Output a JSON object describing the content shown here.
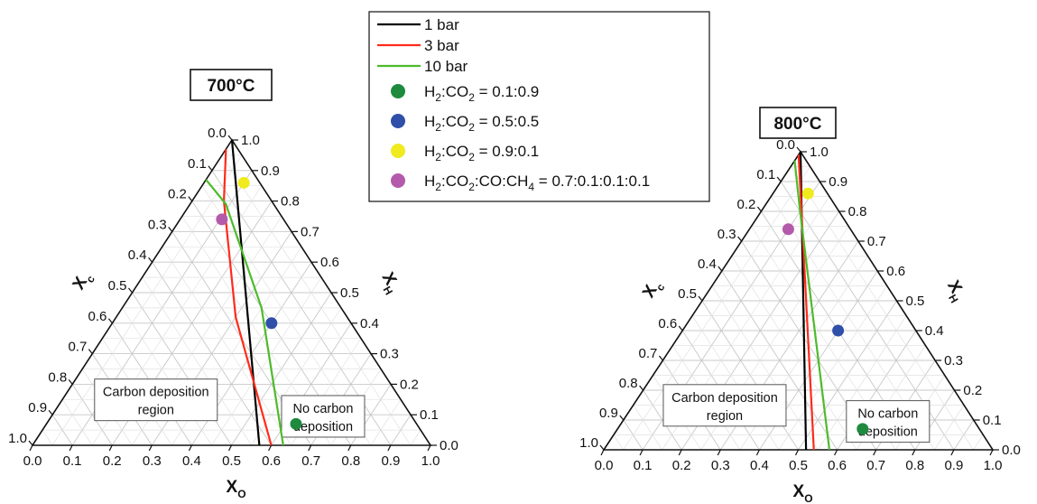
{
  "legend": {
    "lines": [
      {
        "label": "1 bar",
        "color": "#000000"
      },
      {
        "label": "3 bar",
        "color": "#ff2a1a"
      },
      {
        "label": "10 bar",
        "color": "#4dbb2a"
      }
    ],
    "points": [
      {
        "parts": [
          "H",
          "2",
          ":CO",
          "2",
          " = 0.1:0.9"
        ],
        "color": "#1e8a3e"
      },
      {
        "parts": [
          "H",
          "2",
          ":CO",
          "2",
          " = 0.5:0.5"
        ],
        "color": "#2f4fa8"
      },
      {
        "parts": [
          "H",
          "2",
          ":CO",
          "2",
          " = 0.9:0.1"
        ],
        "color": "#f0ea1e"
      },
      {
        "parts": [
          "H",
          "2",
          ":CO",
          "2",
          ":CO:CH",
          "4",
          " = 0.7:0.1:0.1:0.1"
        ],
        "color": "#b45aaa"
      }
    ]
  },
  "axis_labels": {
    "c": "X",
    "c_sub": "c",
    "h": "X",
    "h_sub": "H",
    "o": "X",
    "o_sub": "O"
  },
  "ticks": [
    "0.0",
    "0.1",
    "0.2",
    "0.3",
    "0.4",
    "0.5",
    "0.6",
    "0.7",
    "0.8",
    "0.9",
    "1.0"
  ],
  "chart_data": [
    {
      "type": "scatter",
      "subtype": "ternary",
      "title": "700°C",
      "axes": [
        "X_O (bottom)",
        "X_H (right)",
        "X_C (left)"
      ],
      "axis_range": [
        0,
        1
      ],
      "grid": true,
      "region_labels": {
        "left": [
          "Carbon deposition",
          "region"
        ],
        "right": [
          "No carbon",
          "deposition"
        ]
      },
      "series": [
        {
          "name": "1 bar",
          "kind": "line",
          "color": "#000000",
          "points": [
            {
              "xO": 0.0,
              "xH": 1.0
            },
            {
              "xO": 0.57,
              "xH": 0.0
            }
          ]
        },
        {
          "name": "3 bar",
          "kind": "line",
          "color": "#ff2a1a",
          "points": [
            {
              "xO": 0.0,
              "xH": 0.97
            },
            {
              "xO": 0.08,
              "xH": 0.8
            },
            {
              "xO": 0.3,
              "xH": 0.42
            },
            {
              "xO": 0.6,
              "xH": 0.0
            }
          ]
        },
        {
          "name": "10 bar",
          "kind": "line",
          "color": "#4dbb2a",
          "points": [
            {
              "xO": 0.0,
              "xH": 0.87
            },
            {
              "xO": 0.09,
              "xH": 0.79
            },
            {
              "xO": 0.35,
              "xH": 0.45
            },
            {
              "xO": 0.63,
              "xH": 0.0
            }
          ]
        },
        {
          "name": "H2:CO2 = 0.1:0.9",
          "kind": "point",
          "color": "#1e8a3e",
          "points": [
            {
              "xO": 0.627,
              "xH": 0.07
            }
          ]
        },
        {
          "name": "H2:CO2 = 0.5:0.5",
          "kind": "point",
          "color": "#2f4fa8",
          "points": [
            {
              "xO": 0.4,
              "xH": 0.4
            }
          ]
        },
        {
          "name": "H2:CO2 = 0.9:0.1",
          "kind": "point",
          "color": "#f0ea1e",
          "points": [
            {
              "xO": 0.1,
              "xH": 0.86
            }
          ]
        },
        {
          "name": "H2:CO2:CO:CH4 = 0.7:0.1:0.1:0.1",
          "kind": "point",
          "color": "#b45aaa",
          "points": [
            {
              "xO": 0.105,
              "xH": 0.74
            }
          ]
        }
      ]
    },
    {
      "type": "scatter",
      "subtype": "ternary",
      "title": "800°C",
      "axes": [
        "X_O (bottom)",
        "X_H (right)",
        "X_C (left)"
      ],
      "axis_range": [
        0,
        1
      ],
      "grid": true,
      "region_labels": {
        "left": [
          "Carbon deposition",
          "region"
        ],
        "right": [
          "No carbon",
          "deposition"
        ]
      },
      "series": [
        {
          "name": "1 bar",
          "kind": "line",
          "color": "#000000",
          "points": [
            {
              "xO": 0.0,
              "xH": 1.0
            },
            {
              "xO": 0.52,
              "xH": 0.0
            }
          ]
        },
        {
          "name": "3 bar",
          "kind": "line",
          "color": "#ff2a1a",
          "points": [
            {
              "xO": 0.0,
              "xH": 0.99
            },
            {
              "xO": 0.54,
              "xH": 0.0
            }
          ]
        },
        {
          "name": "10 bar",
          "kind": "line",
          "color": "#4dbb2a",
          "points": [
            {
              "xO": 0.0,
              "xH": 0.97
            },
            {
              "xO": 0.1,
              "xH": 0.8
            },
            {
              "xO": 0.58,
              "xH": 0.0
            }
          ]
        },
        {
          "name": "H2:CO2 = 0.1:0.9",
          "kind": "point",
          "color": "#1e8a3e",
          "points": [
            {
              "xO": 0.63,
              "xH": 0.07
            }
          ]
        },
        {
          "name": "H2:CO2 = 0.5:0.5",
          "kind": "point",
          "color": "#2f4fa8",
          "points": [
            {
              "xO": 0.4,
              "xH": 0.4
            }
          ]
        },
        {
          "name": "H2:CO2 = 0.9:0.1",
          "kind": "point",
          "color": "#f0ea1e",
          "points": [
            {
              "xO": 0.09,
              "xH": 0.86
            }
          ]
        },
        {
          "name": "H2:CO2:CO:CH4 = 0.7:0.1:0.1:0.1",
          "kind": "point",
          "color": "#b45aaa",
          "points": [
            {
              "xO": 0.1,
              "xH": 0.74
            }
          ]
        }
      ]
    }
  ]
}
